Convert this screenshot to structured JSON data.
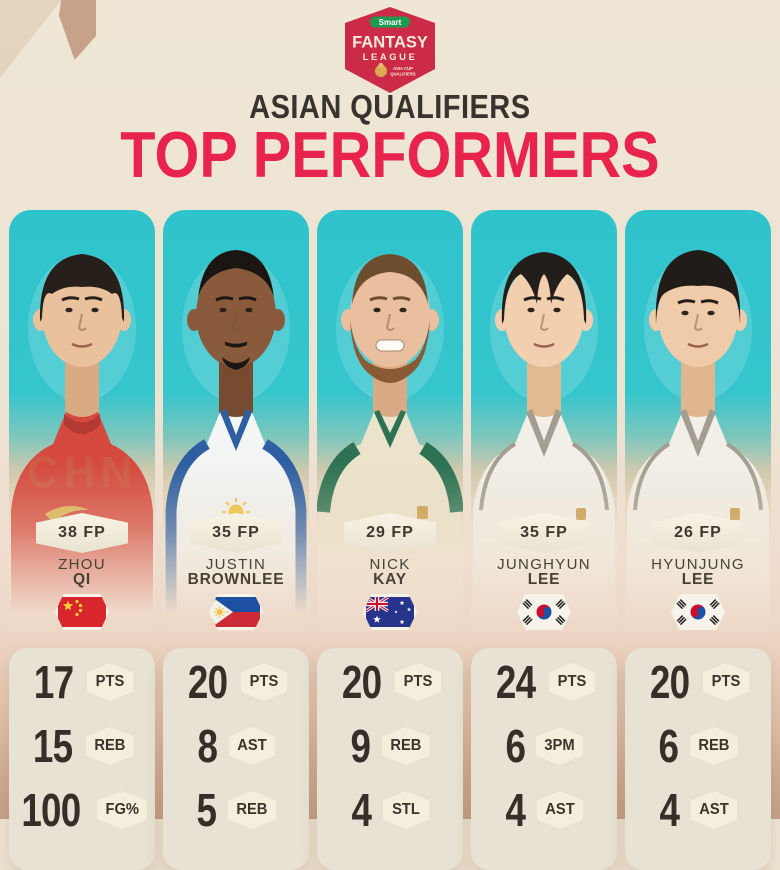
{
  "colors": {
    "background_top": "#efe6d5",
    "background_bottom": "#c2a188",
    "accent_red": "#e8234c",
    "heading_dark": "#37332e",
    "card_teal": "#2fc3cb",
    "stat_panel_bg": "#e7e2d3",
    "badge_bg": "#f4eedd",
    "logo_red": "#cb2b46",
    "logo_green": "#1f9b50"
  },
  "logo": {
    "brand": "Smart",
    "line1": "FANTASY",
    "line2": "LEAGUE",
    "sub1": "ASIA CUP",
    "sub2": "QUALIFIERS"
  },
  "header": {
    "kicker": "ASIAN QUALIFIERS",
    "title": "TOP PERFORMERS"
  },
  "players": [
    {
      "id": "zhou-qi",
      "fp": "38 FP",
      "first": "ZHOU",
      "last": "QI",
      "country": "china",
      "watermark": "CHN",
      "avatar": {
        "skin": "#e9c19c",
        "skin_shade": "#d8ab83",
        "hair": "#261f1a",
        "jersey": "#d6493f",
        "trim": "#b23a32",
        "accent": "#d9b254"
      },
      "stats": [
        {
          "value": "17",
          "label": "PTS"
        },
        {
          "value": "15",
          "label": "REB"
        },
        {
          "value": "100",
          "label": "FG%"
        }
      ]
    },
    {
      "id": "justin-brownlee",
      "fp": "35 FP",
      "first": "JUSTIN",
      "last": "BROWNLEE",
      "country": "philippines",
      "watermark": "",
      "avatar": {
        "skin": "#8a5a3c",
        "skin_shade": "#774b30",
        "hair": "#1c1613",
        "jersey": "#f3f4f4",
        "trim": "#2e5fa3",
        "accent": "#f0c23c"
      },
      "stats": [
        {
          "value": "20",
          "label": "PTS"
        },
        {
          "value": "8",
          "label": "AST"
        },
        {
          "value": "5",
          "label": "REB"
        }
      ]
    },
    {
      "id": "nick-kay",
      "fp": "29 FP",
      "first": "NICK",
      "last": "KAY",
      "country": "australia",
      "watermark": "",
      "avatar": {
        "skin": "#eabfa0",
        "skin_shade": "#d9aa86",
        "hair": "#6e4c2e",
        "beard": "#8a5a33",
        "jersey": "#ebe3cc",
        "trim": "#2c7253",
        "accent": "#c89b4a"
      },
      "stats": [
        {
          "value": "20",
          "label": "PTS"
        },
        {
          "value": "9",
          "label": "REB"
        },
        {
          "value": "4",
          "label": "STL"
        }
      ]
    },
    {
      "id": "junghyun-lee",
      "fp": "35 FP",
      "first": "JUNGHYUN",
      "last": "LEE",
      "country": "south-korea",
      "watermark": "",
      "avatar": {
        "skin": "#f2cfae",
        "skin_shade": "#e2ba92",
        "hair": "#241e1a",
        "jersey": "#f2efe9",
        "trim": "#a49e92",
        "accent": "#c89b4a"
      },
      "stats": [
        {
          "value": "24",
          "label": "PTS"
        },
        {
          "value": "6",
          "label": "3PM"
        },
        {
          "value": "4",
          "label": "AST"
        }
      ]
    },
    {
      "id": "hyunjung-lee",
      "fp": "26 FP",
      "first": "HYUNJUNG",
      "last": "LEE",
      "country": "south-korea",
      "watermark": "",
      "avatar": {
        "skin": "#f0cbaa",
        "skin_shade": "#dfb68e",
        "hair": "#221c18",
        "jersey": "#f2efe9",
        "trim": "#a49e92",
        "accent": "#c89b4a"
      },
      "stats": [
        {
          "value": "20",
          "label": "PTS"
        },
        {
          "value": "6",
          "label": "REB"
        },
        {
          "value": "4",
          "label": "AST"
        }
      ]
    }
  ]
}
